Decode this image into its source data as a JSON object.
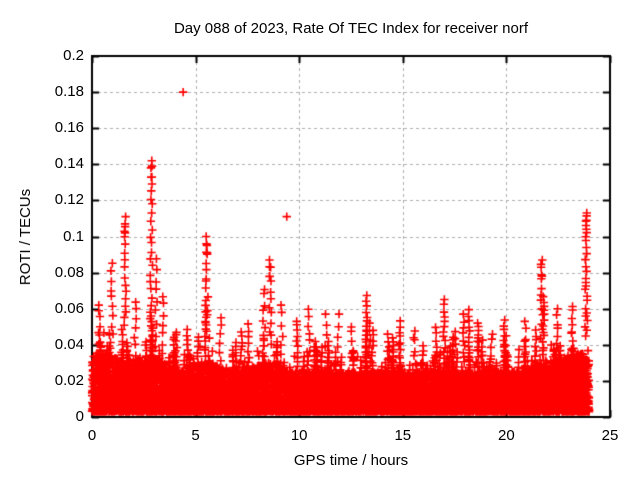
{
  "chart_data": {
    "type": "scatter",
    "title": "Day 088 of 2023, Rate Of TEC Index for receiver norf",
    "xlabel": "GPS time / hours",
    "ylabel": "ROTI / TECUs",
    "xlim": [
      0,
      25
    ],
    "ylim": [
      0,
      0.2
    ],
    "xticks": {
      "values": [
        0,
        5,
        10,
        15,
        20,
        25
      ],
      "labels": [
        "0",
        "5",
        "10",
        "15",
        "20",
        "25"
      ]
    },
    "yticks": {
      "values": [
        0,
        0.02,
        0.04,
        0.06,
        0.08,
        0.1,
        0.12,
        0.14,
        0.16,
        0.18,
        0.2
      ],
      "labels": [
        "0",
        "0.02",
        "0.04",
        "0.06",
        "0.08",
        "0.1",
        "0.12",
        "0.14",
        "0.16",
        "0.18",
        "0.2"
      ]
    },
    "grid": {
      "visible": true,
      "style": "dashed",
      "color": "#b0b0b0"
    },
    "frame_color": "#000000",
    "background": "#ffffff",
    "legend": "none",
    "marker": {
      "shape": "plus",
      "color": "#ff0000",
      "half_size": 4.2,
      "stroke_width": 1.6
    },
    "series": [
      {
        "name": "ROTI",
        "x_data_range": [
          0,
          24
        ],
        "seed": 20230088,
        "base_band": {
          "n": 9500,
          "y0": 0.003,
          "amp": 0.022,
          "power": 1.9,
          "tail_prob": 0.06,
          "tail_amp": 0.012
        },
        "band_bumps": [
          {
            "x": 0.5,
            "w": 1.2,
            "a": 0.5
          },
          {
            "x": 2.9,
            "w": 0.9,
            "a": 0.35
          },
          {
            "x": 5.5,
            "w": 0.8,
            "a": 0.3
          },
          {
            "x": 8.5,
            "w": 0.8,
            "a": 0.25
          },
          {
            "x": 21.8,
            "w": 0.7,
            "a": 0.25
          },
          {
            "x": 23.6,
            "w": 1.0,
            "a": 0.5
          }
        ],
        "texture_columns": {
          "count": 150,
          "y_start": 0.014,
          "h_min": 0.027,
          "h_mean_excess": 0.01,
          "h_max": 0.068,
          "step": 0.0028,
          "x_jitter": 0.16
        },
        "major_spikes": [
          {
            "x": 0.35,
            "top": 0.062,
            "base": 0.03,
            "n": 10
          },
          {
            "x": 0.95,
            "top": 0.086,
            "base": 0.045,
            "n": 9
          },
          {
            "x": 1.6,
            "top": 0.111,
            "base": 0.05,
            "n": 16
          },
          {
            "x": 2.1,
            "top": 0.064,
            "base": 0.035,
            "n": 7
          },
          {
            "x": 2.87,
            "top": 0.142,
            "base": 0.045,
            "n": 24
          },
          {
            "x": 3.1,
            "top": 0.088,
            "base": 0.04,
            "n": 9
          },
          {
            "x": 3.45,
            "top": 0.067,
            "base": 0.035,
            "n": 7
          },
          {
            "x": 4.4,
            "top": 0.18,
            "base": 0.18,
            "n": 1
          },
          {
            "x": 5.54,
            "top": 0.1,
            "base": 0.048,
            "n": 15
          },
          {
            "x": 6.2,
            "top": 0.055,
            "base": 0.032,
            "n": 6
          },
          {
            "x": 7.55,
            "top": 0.052,
            "base": 0.03,
            "n": 7
          },
          {
            "x": 8.3,
            "top": 0.072,
            "base": 0.035,
            "n": 9
          },
          {
            "x": 8.6,
            "top": 0.087,
            "base": 0.04,
            "n": 12
          },
          {
            "x": 9.15,
            "top": 0.062,
            "base": 0.035,
            "n": 6
          },
          {
            "x": 9.4,
            "top": 0.111,
            "base": 0.111,
            "n": 1
          },
          {
            "x": 10.45,
            "top": 0.06,
            "base": 0.033,
            "n": 7
          },
          {
            "x": 11.3,
            "top": 0.057,
            "base": 0.032,
            "n": 5
          },
          {
            "x": 11.9,
            "top": 0.057,
            "base": 0.032,
            "n": 5
          },
          {
            "x": 12.55,
            "top": 0.05,
            "base": 0.03,
            "n": 6
          },
          {
            "x": 13.4,
            "top": 0.052,
            "base": 0.03,
            "n": 6
          },
          {
            "x": 14.3,
            "top": 0.047,
            "base": 0.028,
            "n": 5
          },
          {
            "x": 15.55,
            "top": 0.049,
            "base": 0.03,
            "n": 6
          },
          {
            "x": 16.6,
            "top": 0.051,
            "base": 0.03,
            "n": 5
          },
          {
            "x": 17.5,
            "top": 0.048,
            "base": 0.03,
            "n": 5
          },
          {
            "x": 17.95,
            "top": 0.057,
            "base": 0.032,
            "n": 8
          },
          {
            "x": 18.6,
            "top": 0.052,
            "base": 0.03,
            "n": 5
          },
          {
            "x": 19.3,
            "top": 0.047,
            "base": 0.028,
            "n": 5
          },
          {
            "x": 20.0,
            "top": 0.045,
            "base": 0.028,
            "n": 4
          },
          {
            "x": 20.9,
            "top": 0.053,
            "base": 0.03,
            "n": 6
          },
          {
            "x": 21.7,
            "top": 0.087,
            "base": 0.045,
            "n": 12
          },
          {
            "x": 22.45,
            "top": 0.06,
            "base": 0.033,
            "n": 8
          },
          {
            "x": 23.2,
            "top": 0.062,
            "base": 0.035,
            "n": 8
          },
          {
            "x": 23.85,
            "top": 0.113,
            "base": 0.045,
            "n": 26
          }
        ]
      }
    ]
  }
}
